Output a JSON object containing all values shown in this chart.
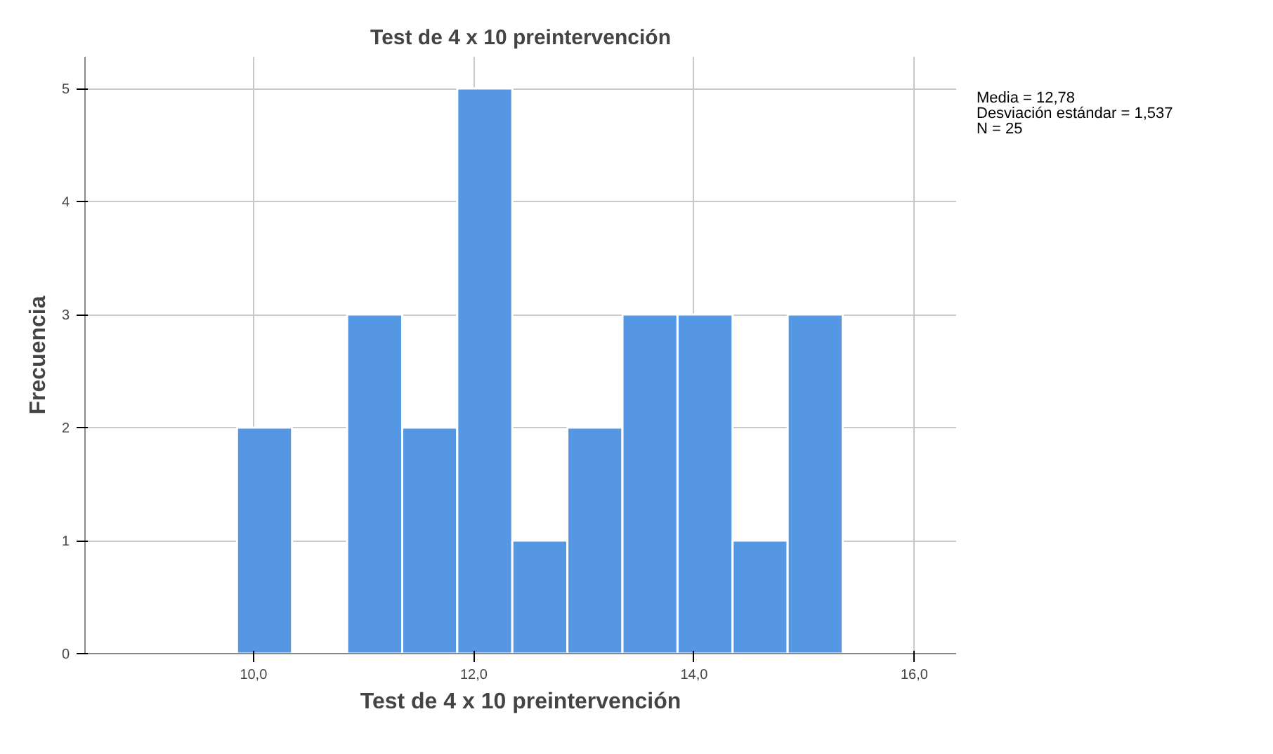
{
  "chart_data": {
    "type": "histogram",
    "title": "Test de 4 x 10 preintervención",
    "xlabel": "Test de 4 x 10 preintervención",
    "ylabel": "Frecuencia",
    "bins": [
      9.85,
      10.35,
      10.85,
      11.35,
      11.85,
      12.35,
      12.85,
      13.35,
      13.85,
      14.35,
      14.85,
      15.35
    ],
    "values": [
      2,
      0,
      3,
      2,
      5,
      1,
      2,
      3,
      3,
      1,
      3
    ],
    "color": "#5597e3",
    "xlim": [
      8.47,
      16.38
    ],
    "ylim": [
      0,
      5.28
    ],
    "xticks": [
      {
        "value": 10,
        "label": "10,0"
      },
      {
        "value": 12,
        "label": "12,0"
      },
      {
        "value": 14,
        "label": "14,0"
      },
      {
        "value": 16,
        "label": "16,0"
      }
    ],
    "yticks": [
      0,
      1,
      2,
      3,
      4,
      5
    ],
    "grid": true,
    "annotations": [
      "Media = 12,78",
      "Desviación estándar = 1,537",
      "N = 25"
    ]
  }
}
